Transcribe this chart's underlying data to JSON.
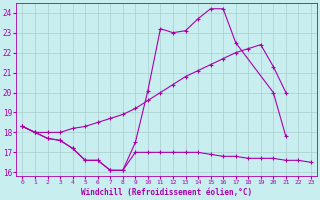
{
  "background_color": "#c8eef0",
  "grid_color": "#aacccc",
  "line_color": "#aa00aa",
  "xlabel": "Windchill (Refroidissement éolien,°C)",
  "xlim": [
    -0.5,
    23.5
  ],
  "ylim": [
    15.8,
    24.5
  ],
  "yticks": [
    16,
    17,
    18,
    19,
    20,
    21,
    22,
    23,
    24
  ],
  "xticks": [
    0,
    1,
    2,
    3,
    4,
    5,
    6,
    7,
    8,
    9,
    10,
    11,
    12,
    13,
    14,
    15,
    16,
    17,
    18,
    19,
    20,
    21,
    22,
    23
  ],
  "line1_x": [
    0,
    1,
    2,
    3,
    4,
    5,
    6,
    7,
    8,
    9,
    10,
    11,
    12,
    13,
    14,
    15,
    16,
    17,
    20,
    21
  ],
  "line1_y": [
    18.3,
    18.0,
    17.7,
    17.6,
    17.2,
    16.6,
    16.6,
    16.1,
    16.1,
    17.5,
    20.1,
    23.2,
    23.0,
    23.1,
    23.7,
    24.2,
    24.2,
    22.5,
    20.0,
    17.8
  ],
  "line2_x": [
    0,
    1,
    2,
    3,
    4,
    5,
    6,
    7,
    8,
    9,
    10,
    11,
    12,
    13,
    14,
    15,
    16,
    17,
    18,
    19,
    20,
    21
  ],
  "line2_y": [
    18.3,
    18.0,
    18.0,
    18.0,
    18.2,
    18.3,
    18.5,
    18.7,
    18.9,
    19.2,
    19.6,
    20.0,
    20.4,
    20.8,
    21.1,
    21.4,
    21.7,
    22.0,
    22.2,
    22.4,
    21.3,
    20.0
  ],
  "line3_x": [
    0,
    1,
    2,
    3,
    4,
    5,
    6,
    7,
    8,
    9,
    10,
    11,
    12,
    13,
    14,
    15,
    16,
    17,
    18,
    19,
    20,
    21,
    22,
    23
  ],
  "line3_y": [
    18.3,
    18.0,
    17.7,
    17.6,
    17.2,
    16.6,
    16.6,
    16.1,
    16.1,
    17.0,
    17.0,
    17.0,
    17.0,
    17.0,
    17.0,
    16.9,
    16.8,
    16.8,
    16.7,
    16.7,
    16.7,
    16.6,
    16.6,
    16.5
  ]
}
